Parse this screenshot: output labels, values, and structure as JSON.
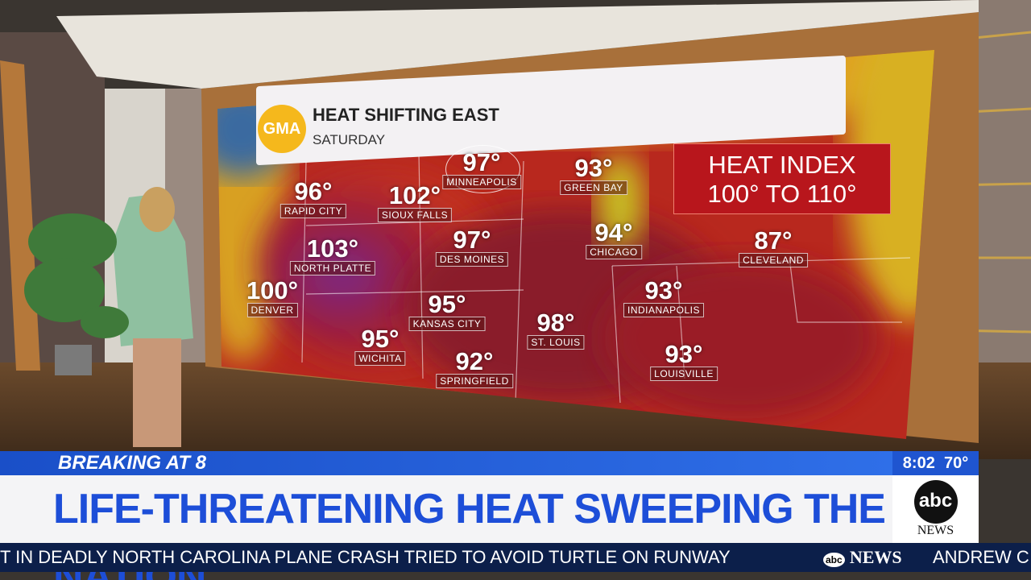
{
  "header": {
    "logo": "GMA",
    "title": "HEAT SHIFTING EAST",
    "subtitle": "SATURDAY"
  },
  "heat_index": {
    "title": "HEAT INDEX",
    "range": "100° TO 110°"
  },
  "cities": [
    {
      "temp": "96°",
      "name": "RAPID CITY"
    },
    {
      "temp": "102°",
      "name": "SIOUX FALLS"
    },
    {
      "temp": "97°",
      "name": "MINNEAPOLIS"
    },
    {
      "temp": "93°",
      "name": "GREEN BAY"
    },
    {
      "temp": "103°",
      "name": "NORTH PLATTE"
    },
    {
      "temp": "97°",
      "name": "DES MOINES"
    },
    {
      "temp": "94°",
      "name": "CHICAGO"
    },
    {
      "temp": "87°",
      "name": "CLEVELAND"
    },
    {
      "temp": "100°",
      "name": "DENVER"
    },
    {
      "temp": "95°",
      "name": "KANSAS CITY"
    },
    {
      "temp": "95°",
      "name": "WICHITA"
    },
    {
      "temp": "92°",
      "name": "SPRINGFIELD"
    },
    {
      "temp": "98°",
      "name": "ST. LOUIS"
    },
    {
      "temp": "93°",
      "name": "INDIANAPOLIS"
    },
    {
      "temp": "93°",
      "name": "LOUISVILLE"
    }
  ],
  "banner": {
    "label": "BREAKING",
    "label_suffix": "AT 8",
    "headline": "LIFE-THREATENING HEAT SWEEPING THE NATION",
    "time": "8:02",
    "temperature": "70°",
    "network": "abc",
    "network_sub": "NEWS"
  },
  "ticker": {
    "text_left": "T IN DEADLY NORTH CAROLINA PLANE CRASH TRIED TO AVOID TURTLE ON RUNWAY",
    "logo_abc": "abc",
    "logo_news": "NEWS",
    "text_right": "ANDREW C"
  }
}
